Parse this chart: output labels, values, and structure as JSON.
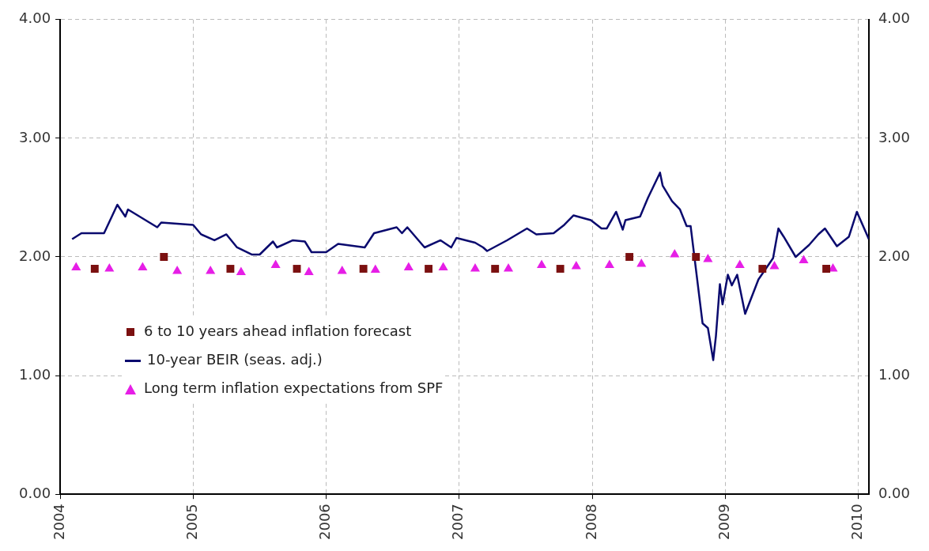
{
  "chart_data": {
    "type": "line",
    "xlim": [
      2004,
      2010.08
    ],
    "xticks": [
      2004,
      2005,
      2006,
      2007,
      2008,
      2009,
      2010
    ],
    "ylim": [
      0,
      4
    ],
    "yticks": [
      {
        "value": 0,
        "label": "0.00"
      },
      {
        "value": 1,
        "label": "1.00"
      },
      {
        "value": 2,
        "label": "2.00"
      },
      {
        "value": 3,
        "label": "3.00"
      },
      {
        "value": 4,
        "label": "4.00"
      }
    ],
    "y2lim": [
      0,
      4
    ],
    "y2ticks": [
      {
        "value": 0,
        "label": "0.00"
      },
      {
        "value": 1,
        "label": "1.00"
      },
      {
        "value": 2,
        "label": "2.00"
      },
      {
        "value": 3,
        "label": "3.00"
      },
      {
        "value": 4,
        "label": "4.00"
      }
    ],
    "grid": true,
    "legend": "bottom left",
    "series": [
      {
        "name": "6 to 10 years ahead inflation forecast",
        "type": "scatter",
        "marker": "square",
        "color": "#7b1010",
        "x": [
          2004.26,
          2004.78,
          2005.28,
          2005.78,
          2006.28,
          2006.77,
          2007.27,
          2007.76,
          2008.28,
          2008.78,
          2009.28,
          2009.76
        ],
        "values": [
          1.9,
          2.0,
          1.9,
          1.9,
          1.9,
          1.9,
          1.9,
          1.9,
          2.0,
          2.0,
          1.9,
          1.9
        ]
      },
      {
        "name": "10-year BEIR (seas. adj.)",
        "marker": "none",
        "line_style": "solid",
        "color": "#0a0a6e",
        "x": [
          2004.09,
          2004.16,
          2004.33,
          2004.43,
          2004.49,
          2004.51,
          2004.73,
          2004.76,
          2005.0,
          2005.06,
          2005.16,
          2005.25,
          2005.33,
          2005.44,
          2005.5,
          2005.6,
          2005.63,
          2005.75,
          2005.84,
          2005.89,
          2006.0,
          2006.09,
          2006.29,
          2006.36,
          2006.53,
          2006.57,
          2006.61,
          2006.74,
          2006.86,
          2006.94,
          2006.98,
          2007.12,
          2007.18,
          2007.21,
          2007.36,
          2007.51,
          2007.58,
          2007.71,
          2007.79,
          2007.86,
          2007.99,
          2008.07,
          2008.11,
          2008.18,
          2008.23,
          2008.25,
          2008.36,
          2008.42,
          2008.51,
          2008.53,
          2008.6,
          2008.66,
          2008.71,
          2008.74,
          2008.83,
          2008.87,
          2008.91,
          2008.93,
          2008.96,
          2008.98,
          2009.02,
          2009.05,
          2009.09,
          2009.15,
          2009.25,
          2009.36,
          2009.4,
          2009.44,
          2009.53,
          2009.63,
          2009.7,
          2009.75,
          2009.84,
          2009.93,
          2009.99,
          2010.08
        ],
        "values": [
          2.15,
          2.2,
          2.2,
          2.44,
          2.34,
          2.4,
          2.25,
          2.29,
          2.27,
          2.19,
          2.14,
          2.19,
          2.08,
          2.02,
          2.02,
          2.13,
          2.08,
          2.14,
          2.13,
          2.04,
          2.04,
          2.11,
          2.08,
          2.2,
          2.25,
          2.2,
          2.25,
          2.08,
          2.14,
          2.08,
          2.16,
          2.12,
          2.08,
          2.05,
          2.14,
          2.24,
          2.19,
          2.2,
          2.27,
          2.35,
          2.31,
          2.24,
          2.24,
          2.38,
          2.23,
          2.31,
          2.34,
          2.5,
          2.71,
          2.6,
          2.47,
          2.4,
          2.26,
          2.26,
          1.44,
          1.4,
          1.13,
          1.33,
          1.77,
          1.6,
          1.85,
          1.76,
          1.85,
          1.52,
          1.81,
          1.99,
          2.24,
          2.17,
          2.0,
          2.1,
          2.19,
          2.24,
          2.09,
          2.17,
          2.38,
          2.15
        ]
      },
      {
        "name": "Long term inflation expectations from SPF",
        "type": "scatter",
        "marker": "triangle",
        "color": "#e61ee6",
        "x": [
          2004.12,
          2004.37,
          2004.62,
          2004.88,
          2005.13,
          2005.36,
          2005.62,
          2005.87,
          2006.12,
          2006.37,
          2006.62,
          2006.88,
          2007.12,
          2007.37,
          2007.62,
          2007.88,
          2008.13,
          2008.37,
          2008.62,
          2008.87,
          2009.11,
          2009.37,
          2009.59,
          2009.81
        ],
        "values": [
          1.91,
          1.9,
          1.91,
          1.88,
          1.88,
          1.87,
          1.93,
          1.87,
          1.88,
          1.89,
          1.91,
          1.91,
          1.9,
          1.9,
          1.93,
          1.92,
          1.93,
          1.94,
          2.02,
          1.98,
          1.93,
          1.92,
          1.97,
          1.9
        ]
      }
    ]
  }
}
